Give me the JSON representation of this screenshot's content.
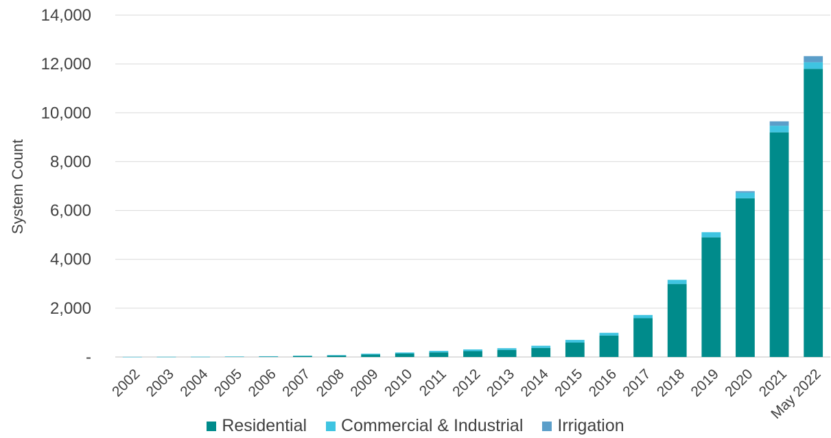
{
  "chart_data": {
    "type": "bar",
    "stacked": true,
    "categories": [
      "2002",
      "2003",
      "2004",
      "2005",
      "2006",
      "2007",
      "2008",
      "2009",
      "2010",
      "2011",
      "2012",
      "2013",
      "2014",
      "2015",
      "2016",
      "2017",
      "2018",
      "2019",
      "2020",
      "2021",
      "May 2022"
    ],
    "series": [
      {
        "name": "Residential",
        "color": "#008b8b",
        "values": [
          2,
          5,
          8,
          15,
          22,
          40,
          60,
          100,
          140,
          190,
          240,
          290,
          370,
          590,
          880,
          1590,
          2990,
          4900,
          6500,
          9200,
          11800
        ]
      },
      {
        "name": "Commercial & Industrial",
        "color": "#3fc4e1",
        "values": [
          1,
          2,
          3,
          5,
          8,
          15,
          20,
          35,
          45,
          60,
          70,
          70,
          90,
          110,
          110,
          130,
          170,
          210,
          230,
          270,
          270
        ]
      },
      {
        "name": "Irrigation",
        "color": "#5b9ec9",
        "values": [
          0,
          0,
          0,
          0,
          0,
          0,
          0,
          0,
          0,
          0,
          0,
          0,
          0,
          0,
          0,
          0,
          0,
          0,
          60,
          180,
          250
        ]
      }
    ],
    "ylabel": "System Count",
    "xlabel": "",
    "ylim": [
      0,
      14000
    ],
    "yticks": [
      0,
      2000,
      4000,
      6000,
      8000,
      10000,
      12000,
      14000
    ],
    "ytick_labels": [
      "-",
      "2,000",
      "4,000",
      "6,000",
      "8,000",
      "10,000",
      "12,000",
      "14,000"
    ],
    "grid": true,
    "legend_position": "bottom"
  }
}
